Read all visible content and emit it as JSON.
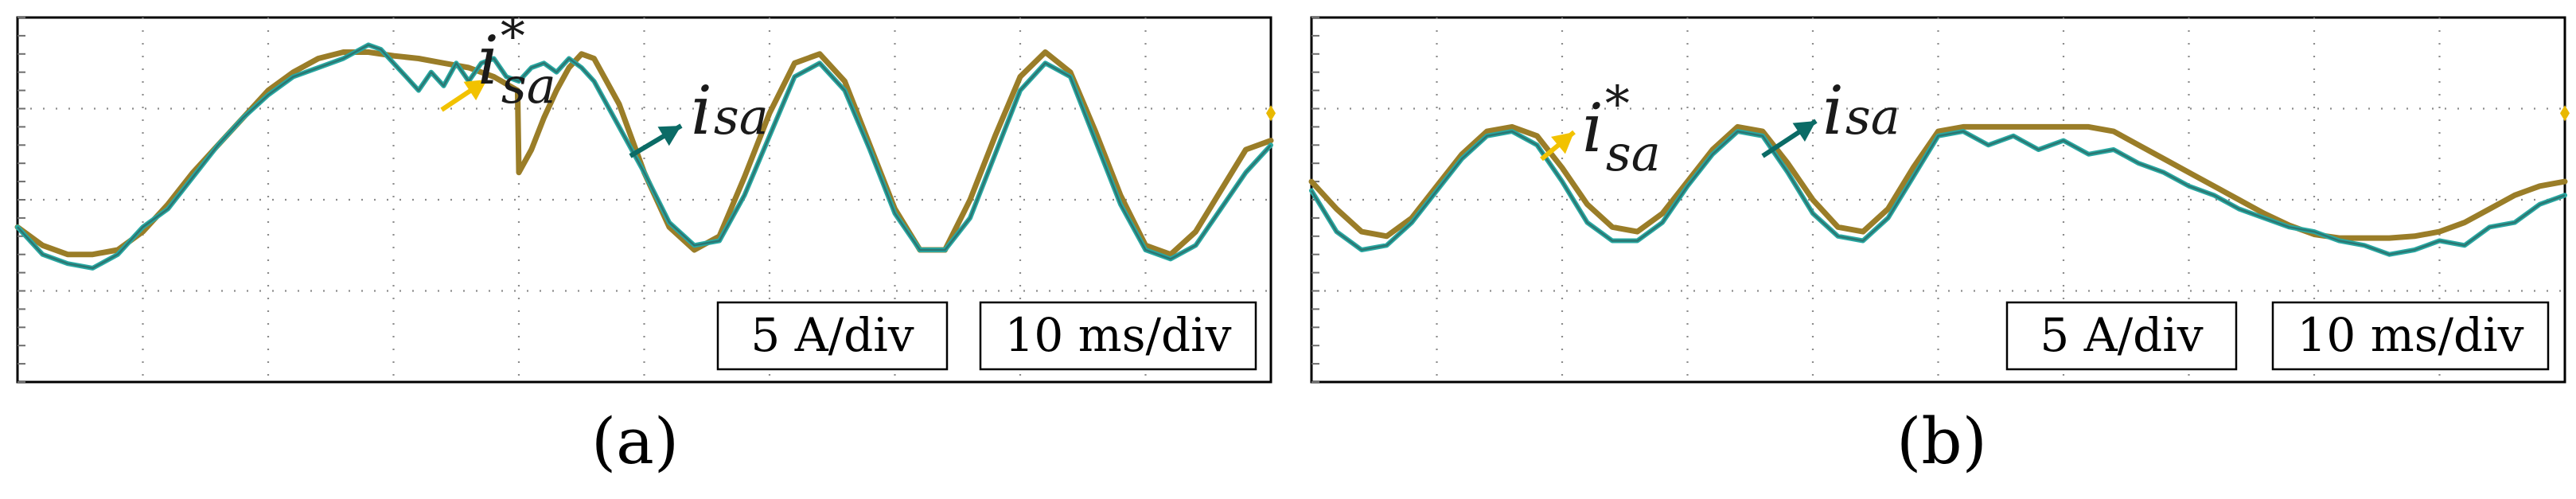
{
  "chart_data": [
    {
      "type": "line",
      "panel_label": "(a)",
      "title": "",
      "xlabel": "",
      "ylabel": "",
      "xlim": [
        0,
        100
      ],
      "ylim": [
        -2,
        2
      ],
      "grid": true,
      "x_divisions": 10,
      "y_divisions": 4,
      "scale_current": "5 A/div",
      "scale_time": "10 ms/div",
      "series": [
        {
          "name": "i_sa*",
          "symbol": "i",
          "subscript": "sa",
          "superscript": "*",
          "color": "#c9a227",
          "arrow_color": "#f2c200",
          "x": [
            0,
            2,
            4,
            6,
            8,
            10,
            12,
            14,
            16,
            18,
            20,
            22,
            24,
            26,
            28,
            30,
            32,
            34,
            36,
            38,
            39.9,
            40,
            41,
            42,
            43,
            44,
            45,
            46,
            48,
            50,
            52,
            54,
            56,
            58,
            60,
            62,
            64,
            66,
            68,
            70,
            72,
            74,
            76,
            78,
            80,
            82,
            84,
            86,
            88,
            90,
            92,
            94,
            96,
            98,
            100
          ],
          "values": [
            -0.3,
            -0.5,
            -0.6,
            -0.6,
            -0.55,
            -0.35,
            -0.05,
            0.3,
            0.6,
            0.9,
            1.2,
            1.4,
            1.55,
            1.62,
            1.62,
            1.58,
            1.55,
            1.5,
            1.45,
            1.35,
            1.2,
            0.3,
            0.55,
            0.9,
            1.2,
            1.45,
            1.6,
            1.55,
            1.05,
            0.3,
            -0.3,
            -0.55,
            -0.4,
            0.25,
            0.95,
            1.5,
            1.6,
            1.3,
            0.6,
            -0.1,
            -0.55,
            -0.55,
            0.0,
            0.7,
            1.35,
            1.62,
            1.4,
            0.75,
            0.05,
            -0.5,
            -0.6,
            -0.35,
            0.1,
            0.55,
            0.65
          ]
        },
        {
          "name": "i_sa",
          "symbol": "i",
          "subscript": "sa",
          "superscript": "",
          "color": "#2aa8a2",
          "arrow_color": "#0b6b66",
          "x": [
            0,
            2,
            4,
            6,
            8,
            10,
            12,
            14,
            16,
            18,
            20,
            22,
            24,
            26,
            28,
            29,
            30,
            31,
            32,
            33,
            34,
            35,
            36,
            37,
            38,
            39,
            40,
            41,
            42,
            43,
            44,
            45,
            46,
            47,
            48,
            50,
            52,
            54,
            56,
            58,
            60,
            62,
            64,
            66,
            68,
            70,
            72,
            74,
            76,
            78,
            80,
            82,
            84,
            86,
            88,
            90,
            92,
            94,
            96,
            98,
            100
          ],
          "values": [
            -0.3,
            -0.6,
            -0.7,
            -0.75,
            -0.6,
            -0.3,
            -0.1,
            0.25,
            0.6,
            0.9,
            1.15,
            1.35,
            1.45,
            1.55,
            1.7,
            1.65,
            1.5,
            1.35,
            1.2,
            1.4,
            1.25,
            1.5,
            1.3,
            1.5,
            1.55,
            1.35,
            1.3,
            1.45,
            1.5,
            1.4,
            1.55,
            1.45,
            1.3,
            1.05,
            0.8,
            0.3,
            -0.25,
            -0.5,
            -0.45,
            0.05,
            0.7,
            1.35,
            1.5,
            1.2,
            0.55,
            -0.15,
            -0.55,
            -0.55,
            -0.2,
            0.5,
            1.2,
            1.5,
            1.35,
            0.65,
            -0.05,
            -0.55,
            -0.65,
            -0.5,
            -0.1,
            0.3,
            0.6
          ]
        }
      ]
    },
    {
      "type": "line",
      "panel_label": "(b)",
      "title": "",
      "xlabel": "",
      "ylabel": "",
      "xlim": [
        0,
        100
      ],
      "ylim": [
        -2,
        2
      ],
      "grid": true,
      "x_divisions": 10,
      "y_divisions": 4,
      "scale_current": "5 A/div",
      "scale_time": "10 ms/div",
      "series": [
        {
          "name": "i_sa*",
          "symbol": "i",
          "subscript": "sa",
          "superscript": "*",
          "color": "#c9a227",
          "arrow_color": "#f2c200",
          "x": [
            0,
            2,
            4,
            6,
            8,
            10,
            12,
            14,
            16,
            18,
            20,
            22,
            24,
            26,
            28,
            30,
            32,
            34,
            36,
            38,
            40,
            42,
            44,
            46,
            48,
            50,
            52,
            54,
            56,
            58,
            60,
            62,
            64,
            66,
            68,
            70,
            72,
            74,
            76,
            78,
            80,
            82,
            84,
            86,
            88,
            90,
            92,
            94,
            96,
            98,
            100
          ],
          "values": [
            0.2,
            -0.1,
            -0.35,
            -0.4,
            -0.2,
            0.15,
            0.5,
            0.75,
            0.8,
            0.7,
            0.35,
            -0.05,
            -0.3,
            -0.35,
            -0.15,
            0.2,
            0.55,
            0.8,
            0.75,
            0.4,
            0.0,
            -0.3,
            -0.35,
            -0.1,
            0.35,
            0.75,
            0.8,
            0.8,
            0.8,
            0.8,
            0.8,
            0.8,
            0.75,
            0.6,
            0.45,
            0.3,
            0.15,
            0.0,
            -0.15,
            -0.28,
            -0.38,
            -0.42,
            -0.42,
            -0.42,
            -0.4,
            -0.35,
            -0.25,
            -0.1,
            0.05,
            0.15,
            0.2
          ]
        },
        {
          "name": "i_sa",
          "symbol": "i",
          "subscript": "sa",
          "superscript": "",
          "color": "#2aa8a2",
          "arrow_color": "#0b6b66",
          "x": [
            0,
            2,
            4,
            6,
            8,
            10,
            12,
            14,
            16,
            18,
            20,
            22,
            24,
            26,
            28,
            30,
            32,
            34,
            36,
            38,
            40,
            42,
            44,
            46,
            48,
            50,
            52,
            54,
            56,
            58,
            60,
            62,
            64,
            66,
            68,
            70,
            72,
            74,
            76,
            78,
            80,
            82,
            84,
            86,
            88,
            90,
            92,
            94,
            96,
            98,
            100
          ],
          "values": [
            0.1,
            -0.35,
            -0.55,
            -0.5,
            -0.25,
            0.1,
            0.45,
            0.7,
            0.75,
            0.6,
            0.2,
            -0.25,
            -0.45,
            -0.45,
            -0.25,
            0.15,
            0.5,
            0.75,
            0.7,
            0.3,
            -0.15,
            -0.4,
            -0.45,
            -0.2,
            0.25,
            0.7,
            0.75,
            0.6,
            0.7,
            0.55,
            0.65,
            0.5,
            0.55,
            0.4,
            0.3,
            0.15,
            0.05,
            -0.1,
            -0.2,
            -0.3,
            -0.35,
            -0.45,
            -0.5,
            -0.6,
            -0.55,
            -0.45,
            -0.5,
            -0.3,
            -0.25,
            -0.05,
            0.05
          ]
        }
      ]
    }
  ]
}
